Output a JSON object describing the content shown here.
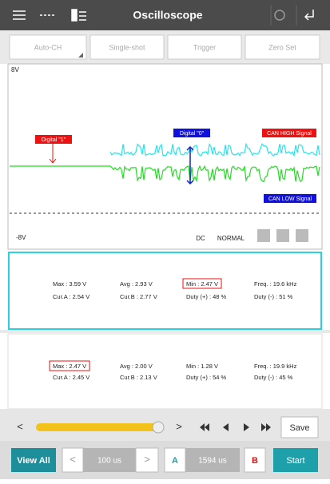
{
  "header": {
    "title": "Oscilloscope"
  },
  "toolbar": {
    "buttons": [
      "Auto-CH",
      "Single-shot",
      "Trigger",
      "Zero Set"
    ]
  },
  "scope": {
    "y_top": "8V",
    "y_bottom": "-8V",
    "annotations": {
      "digital_1": "Digital \"1\"",
      "digital_0": "Digital \"0\"",
      "can_high": "CAN HIGH Signal",
      "can_low": "CAN LOW Signal"
    },
    "coupling": "DC",
    "mode": "NORMAL"
  },
  "panels": [
    {
      "rows": [
        [
          "Max : 3.59 V",
          "Avg : 2.93 V",
          "Min : 2.47 V",
          "Freq. : 19.6 kHz"
        ],
        [
          "Cur.A : 2.54 V",
          "Cur.B : 2.77 V",
          "Duty (+) : 48 %",
          "Duty (-) : 51 %"
        ]
      ]
    },
    {
      "rows": [
        [
          "Max : 2.47 V",
          "Avg : 2.00 V",
          "Min : 1.28 V",
          "Freq. : 19.9 kHz"
        ],
        [
          "Cur.A : 2.45 V",
          "Cur.B : 2.13 V",
          "Duty (+) : 54 %",
          "Duty (-) : 45 %"
        ]
      ]
    }
  ],
  "controls": {
    "save": "Save",
    "view_all": "View All",
    "time_div": "100 us",
    "cursor_a": "A",
    "cursor_span": "1594 us",
    "cursor_b": "B",
    "start": "Start"
  }
}
